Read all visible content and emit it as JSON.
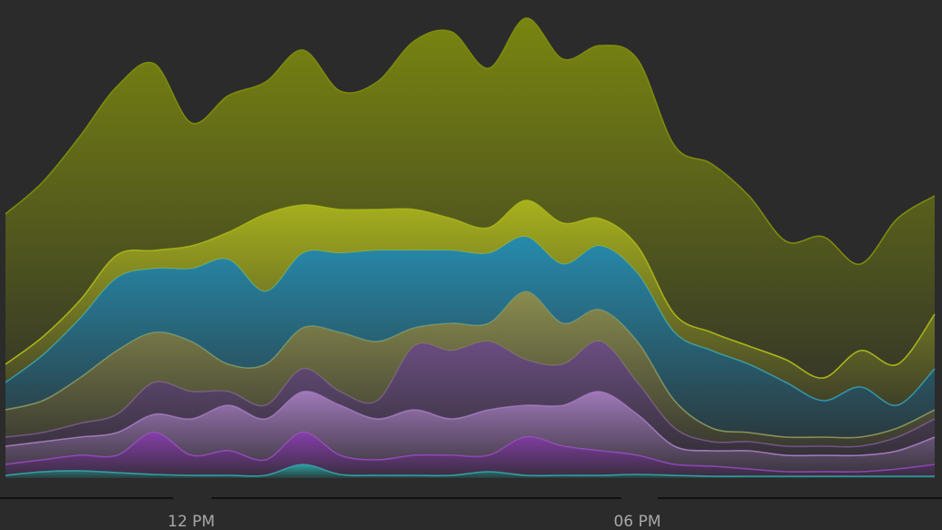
{
  "chart_data": {
    "type": "stacked_area",
    "categories": [
      null,
      null,
      null,
      null,
      null,
      "12 PM",
      null,
      null,
      null,
      null,
      null,
      null,
      null,
      null,
      null,
      null,
      null,
      "06 PM",
      null,
      null,
      null,
      null,
      null,
      null,
      null,
      null
    ],
    "ylim": [
      0,
      525
    ],
    "series": [
      {
        "color": "#2aa6a6",
        "values": [
          3,
          7,
          8,
          6,
          4,
          3,
          3,
          3,
          15,
          4,
          3,
          3,
          3,
          7,
          3,
          3,
          3,
          4,
          3,
          2,
          2,
          2,
          2,
          2,
          2,
          2
        ]
      },
      {
        "color": "#8a3fb0",
        "values": [
          12,
          13,
          17,
          19,
          46,
          22,
          27,
          17,
          35,
          21,
          17,
          22,
          22,
          18,
          42,
          32,
          27,
          21,
          12,
          11,
          8,
          5,
          5,
          5,
          8,
          13
        ]
      },
      {
        "color": "#a57cc0",
        "values": [
          20,
          20,
          20,
          25,
          20,
          40,
          50,
          45,
          45,
          55,
          45,
          50,
          40,
          50,
          35,
          45,
          65,
          45,
          20,
          17,
          20,
          18,
          18,
          18,
          20,
          30
        ]
      },
      {
        "color": "#6e4f86",
        "values": [
          10,
          10,
          15,
          20,
          35,
          30,
          15,
          15,
          25,
          15,
          20,
          70,
          75,
          75,
          50,
          45,
          55,
          35,
          20,
          10,
          10,
          10,
          10,
          10,
          15,
          20
        ]
      },
      {
        "color": "#8f9150",
        "values": [
          30,
          35,
          50,
          70,
          55,
          55,
          30,
          45,
          45,
          65,
          65,
          20,
          30,
          20,
          75,
          45,
          35,
          45,
          30,
          15,
          10,
          10,
          10,
          10,
          10,
          10
        ]
      },
      {
        "color": "#2690b4",
        "values": [
          30,
          50,
          65,
          80,
          70,
          80,
          115,
          80,
          82,
          87,
          100,
          85,
          80,
          77,
          60,
          65,
          70,
          75,
          75,
          85,
          75,
          60,
          40,
          55,
          25,
          45
        ]
      },
      {
        "color": "#aeb81c",
        "values": [
          20,
          20,
          20,
          25,
          20,
          25,
          30,
          85,
          53,
          48,
          45,
          45,
          35,
          28,
          40,
          45,
          30,
          30,
          20,
          20,
          20,
          25,
          25,
          40,
          45,
          60
        ]
      },
      {
        "color": "#7d8a0e",
        "values": [
          165,
          170,
          180,
          185,
          205,
          135,
          150,
          145,
          170,
          130,
          140,
          185,
          205,
          175,
          200,
          180,
          190,
          205,
          185,
          185,
          165,
          130,
          155,
          95,
          160,
          130
        ]
      }
    ]
  }
}
